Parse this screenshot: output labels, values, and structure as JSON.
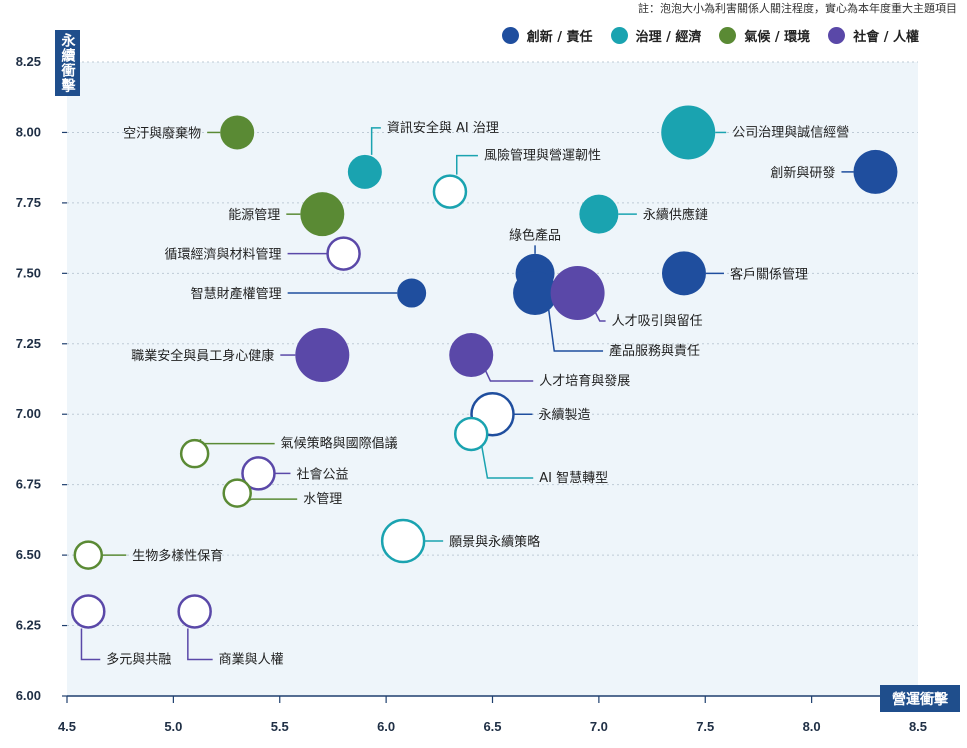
{
  "note": "註：泡泡大小為利害關係人關注程度，實心為本年度重大主題項目",
  "legend": [
    {
      "label": "創新 / 責任",
      "color": "#1f4e9e"
    },
    {
      "label": "治理 / 經濟",
      "color": "#1aa3b0"
    },
    {
      "label": "氣候 / 環境",
      "color": "#5a8a34"
    },
    {
      "label": "社會 / 人權",
      "color": "#5a48a8"
    }
  ],
  "chart_data": {
    "type": "scatter",
    "xlabel": "營運衝擊",
    "ylabel": "永續衝擊",
    "xlim": [
      4.5,
      8.5
    ],
    "ylim": [
      6.0,
      8.25
    ],
    "xticks": [
      "4.5",
      "5.0",
      "5.5",
      "6.0",
      "6.5",
      "7.0",
      "7.5",
      "8.0",
      "8.5"
    ],
    "yticks": [
      "6.00",
      "6.25",
      "6.50",
      "6.75",
      "7.00",
      "7.25",
      "7.50",
      "7.75",
      "8.00",
      "8.25"
    ],
    "points": [
      {
        "label": "空汙與廢棄物",
        "x": 5.3,
        "y": 8.0,
        "category": "氣候 / 環境",
        "filled": true,
        "size": 2
      },
      {
        "label": "資訊安全與 AI 治理",
        "x": 5.9,
        "y": 7.86,
        "category": "治理 / 經濟",
        "filled": true,
        "size": 2
      },
      {
        "label": "風險管理與營運韌性",
        "x": 6.3,
        "y": 7.79,
        "category": "治理 / 經濟",
        "filled": false,
        "size": 2
      },
      {
        "label": "公司治理與誠信經營",
        "x": 7.42,
        "y": 8.0,
        "category": "治理 / 經濟",
        "filled": true,
        "size": 4
      },
      {
        "label": "創新與研發",
        "x": 8.3,
        "y": 7.86,
        "category": "創新 / 責任",
        "filled": true,
        "size": 3
      },
      {
        "label": "能源管理",
        "x": 5.7,
        "y": 7.71,
        "category": "氣候 / 環境",
        "filled": true,
        "size": 3
      },
      {
        "label": "永續供應鏈",
        "x": 7.0,
        "y": 7.71,
        "category": "治理 / 經濟",
        "filled": true,
        "size": 2.5
      },
      {
        "label": "循環經濟與材料管理",
        "x": 5.8,
        "y": 7.57,
        "category": "社會 / 人權",
        "filled": false,
        "size": 2
      },
      {
        "label": "綠色產品",
        "x": 6.7,
        "y": 7.5,
        "category": "創新 / 責任",
        "filled": true,
        "size": 2.5
      },
      {
        "label": "客戶關係管理",
        "x": 7.4,
        "y": 7.5,
        "category": "創新 / 責任",
        "filled": true,
        "size": 3
      },
      {
        "label": "智慧財產權管理",
        "x": 6.12,
        "y": 7.43,
        "category": "創新 / 責任",
        "filled": true,
        "size": 1.5
      },
      {
        "label": "產品服務與責任",
        "x": 6.7,
        "y": 7.43,
        "category": "創新 / 責任",
        "filled": true,
        "size": 3
      },
      {
        "label": "人才吸引與留任",
        "x": 6.9,
        "y": 7.43,
        "category": "社會 / 人權",
        "filled": true,
        "size": 4
      },
      {
        "label": "職業安全與員工身心健康",
        "x": 5.7,
        "y": 7.21,
        "category": "社會 / 人權",
        "filled": true,
        "size": 4
      },
      {
        "label": "人才培育與發展",
        "x": 6.4,
        "y": 7.21,
        "category": "社會 / 人權",
        "filled": true,
        "size": 3
      },
      {
        "label": "永續製造",
        "x": 6.5,
        "y": 7.0,
        "category": "創新 / 責任",
        "filled": false,
        "size": 3
      },
      {
        "label": "AI 智慧轉型",
        "x": 6.4,
        "y": 6.93,
        "category": "治理 / 經濟",
        "filled": false,
        "size": 2
      },
      {
        "label": "氣候策略與國際倡議",
        "x": 5.1,
        "y": 6.86,
        "category": "氣候 / 環境",
        "filled": false,
        "size": 1.5
      },
      {
        "label": "社會公益",
        "x": 5.4,
        "y": 6.79,
        "category": "社會 / 人權",
        "filled": false,
        "size": 2
      },
      {
        "label": "水管理",
        "x": 5.3,
        "y": 6.72,
        "category": "氣候 / 環境",
        "filled": false,
        "size": 1.5
      },
      {
        "label": "願景與永續策略",
        "x": 6.08,
        "y": 6.55,
        "category": "治理 / 經濟",
        "filled": false,
        "size": 3
      },
      {
        "label": "生物多樣性保育",
        "x": 4.6,
        "y": 6.5,
        "category": "氣候 / 環境",
        "filled": false,
        "size": 1.5
      },
      {
        "label": "多元與共融",
        "x": 4.6,
        "y": 6.3,
        "category": "社會 / 人權",
        "filled": false,
        "size": 2
      },
      {
        "label": "商業與人權",
        "x": 5.1,
        "y": 6.3,
        "category": "社會 / 人權",
        "filled": false,
        "size": 2
      }
    ]
  }
}
